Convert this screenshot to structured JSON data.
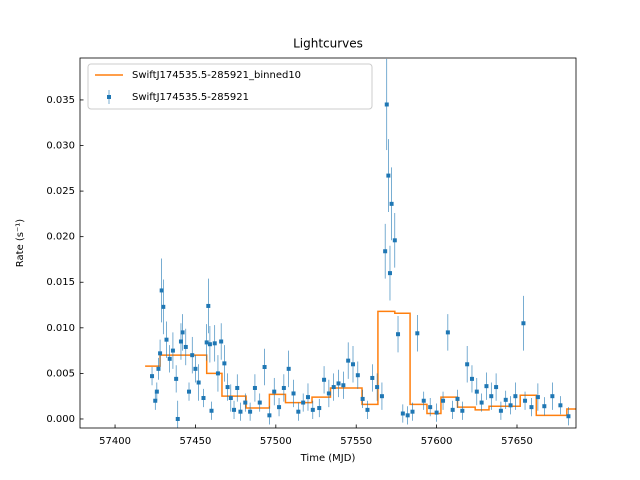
{
  "chart_data": {
    "type": "errorbar",
    "title": "Lightcurves",
    "xlabel": "Time (MJD)",
    "ylabel": "Rate (s⁻¹)",
    "xlim": [
      57378.2,
      57686.7
    ],
    "ylim": [
      -0.00099,
      0.0396
    ],
    "xticks": [
      57400,
      57450,
      57500,
      57550,
      57600,
      57650
    ],
    "yticks": [
      {
        "value": 0,
        "label": "0.000"
      },
      {
        "value": 0.005,
        "label": "0.005"
      },
      {
        "value": 0.01,
        "label": "0.010"
      },
      {
        "value": 0.015,
        "label": "0.015"
      },
      {
        "value": 0.02,
        "label": "0.020"
      },
      {
        "value": 0.025,
        "label": "0.025"
      },
      {
        "value": 0.03,
        "label": "0.030"
      },
      {
        "value": 0.035,
        "label": "0.035"
      }
    ],
    "legend": "upper left",
    "series": [
      {
        "name": "SwiftJ174535.5-285921_binned10",
        "color": "#ff7f0e",
        "style": "step",
        "x": [
          57418.7,
          57428,
          57457,
          57466.5,
          57481.5,
          57496,
          57506,
          57522.5,
          57534,
          57553.6,
          57563.5,
          57574,
          57583.5,
          57594,
          57602.7,
          57613,
          57624,
          57632.6,
          57652,
          57662,
          57681,
          57686.7
        ],
        "values": [
          0.0058,
          0.007,
          0.005,
          0.0025,
          0.0012,
          0.0027,
          0.0018,
          0.0024,
          0.0034,
          0.0016,
          0.0118,
          0.0116,
          0.0016,
          0.0006,
          0.0024,
          0.0013,
          0.001,
          0.0014,
          0.0026,
          0.0004,
          0.0011,
          0.0011
        ]
      },
      {
        "name": "SwiftJ174535.5-285921",
        "color": "#1f77b4",
        "style": "errorbar",
        "x": [
          57423,
          57425,
          57426,
          57427,
          57428,
          57429,
          57430,
          57432,
          57434,
          57436,
          57438,
          57439,
          57441,
          57442,
          57444,
          57446,
          57448,
          57450,
          57452,
          57455,
          57457,
          57458,
          57459,
          57460,
          57462,
          57464,
          57466,
          57468,
          57470,
          57472,
          57474,
          57476,
          57478,
          57481,
          57484,
          57487,
          57490,
          57493,
          57496,
          57499,
          57502,
          57505,
          57508,
          57511,
          57514,
          57517,
          57520,
          57523,
          57527,
          57530,
          57533,
          57536,
          57539,
          57542,
          57545,
          57548,
          57551,
          57554,
          57557,
          57560,
          57563,
          57566,
          57568,
          57569,
          57570,
          57571,
          57572,
          57574,
          57576,
          57579,
          57582,
          57585,
          57588,
          57592,
          57596,
          57600,
          57604,
          57607,
          57610,
          57613,
          57616,
          57619,
          57622,
          57625,
          57628,
          57631,
          57634,
          57637,
          57640,
          57643,
          57646,
          57649,
          57654,
          57655,
          57659,
          57663,
          57667,
          57672,
          57677,
          57682
        ],
        "values": [
          0.0047,
          0.002,
          0.003,
          0.0055,
          0.0072,
          0.0141,
          0.0123,
          0.0087,
          0.0066,
          0.0075,
          0.0044,
          0.0,
          0.0085,
          0.0095,
          0.0079,
          0.003,
          0.007,
          0.0055,
          0.004,
          0.0023,
          0.0084,
          0.0124,
          0.0082,
          0.0009,
          0.0083,
          0.005,
          0.0085,
          0.0061,
          0.0035,
          0.0023,
          0.001,
          0.0034,
          0.0008,
          0.0018,
          0.0008,
          0.0034,
          0.0018,
          0.0057,
          0.0004,
          0.003,
          0.0013,
          0.0034,
          0.0055,
          0.0028,
          0.0008,
          0.0018,
          0.0024,
          0.001,
          0.0012,
          0.0043,
          0.0028,
          0.0035,
          0.0039,
          0.0037,
          0.0064,
          0.006,
          0.0048,
          0.0022,
          0.001,
          0.0045,
          0.0035,
          0.0025,
          0.0184,
          0.0345,
          0.0267,
          0.016,
          0.0236,
          0.0196,
          0.0093,
          0.0006,
          0.0004,
          0.0008,
          0.0094,
          0.002,
          0.0013,
          0.0007,
          0.002,
          0.0095,
          0.001,
          0.0022,
          0.0009,
          0.006,
          0.0044,
          0.003,
          0.0018,
          0.0036,
          0.0025,
          0.0035,
          0.0009,
          0.0021,
          0.0015,
          0.0025,
          0.0105,
          0.002,
          0.0013,
          0.0024,
          0.0014,
          0.0025,
          0.0015,
          0.0003
        ],
        "errors": [
          0.001,
          0.001,
          0.001,
          0.0012,
          0.0015,
          0.0035,
          0.003,
          0.002,
          0.0015,
          0.002,
          0.0015,
          0.002,
          0.002,
          0.002,
          0.002,
          0.001,
          0.002,
          0.0015,
          0.002,
          0.001,
          0.002,
          0.003,
          0.002,
          0.001,
          0.002,
          0.002,
          0.002,
          0.002,
          0.0015,
          0.0015,
          0.001,
          0.0015,
          0.001,
          0.001,
          0.001,
          0.0015,
          0.001,
          0.002,
          0.001,
          0.0015,
          0.001,
          0.0015,
          0.002,
          0.0015,
          0.001,
          0.001,
          0.0015,
          0.001,
          0.001,
          0.0015,
          0.0015,
          0.0015,
          0.0015,
          0.0015,
          0.002,
          0.002,
          0.0015,
          0.001,
          0.001,
          0.0015,
          0.0015,
          0.0015,
          0.003,
          0.005,
          0.004,
          0.003,
          0.004,
          0.003,
          0.002,
          0.001,
          0.001,
          0.001,
          0.002,
          0.001,
          0.001,
          0.001,
          0.001,
          0.002,
          0.001,
          0.001,
          0.001,
          0.002,
          0.0015,
          0.0015,
          0.001,
          0.0015,
          0.0015,
          0.0015,
          0.001,
          0.001,
          0.001,
          0.0015,
          0.003,
          0.001,
          0.001,
          0.0015,
          0.001,
          0.0015,
          0.001,
          0.001
        ]
      }
    ]
  }
}
